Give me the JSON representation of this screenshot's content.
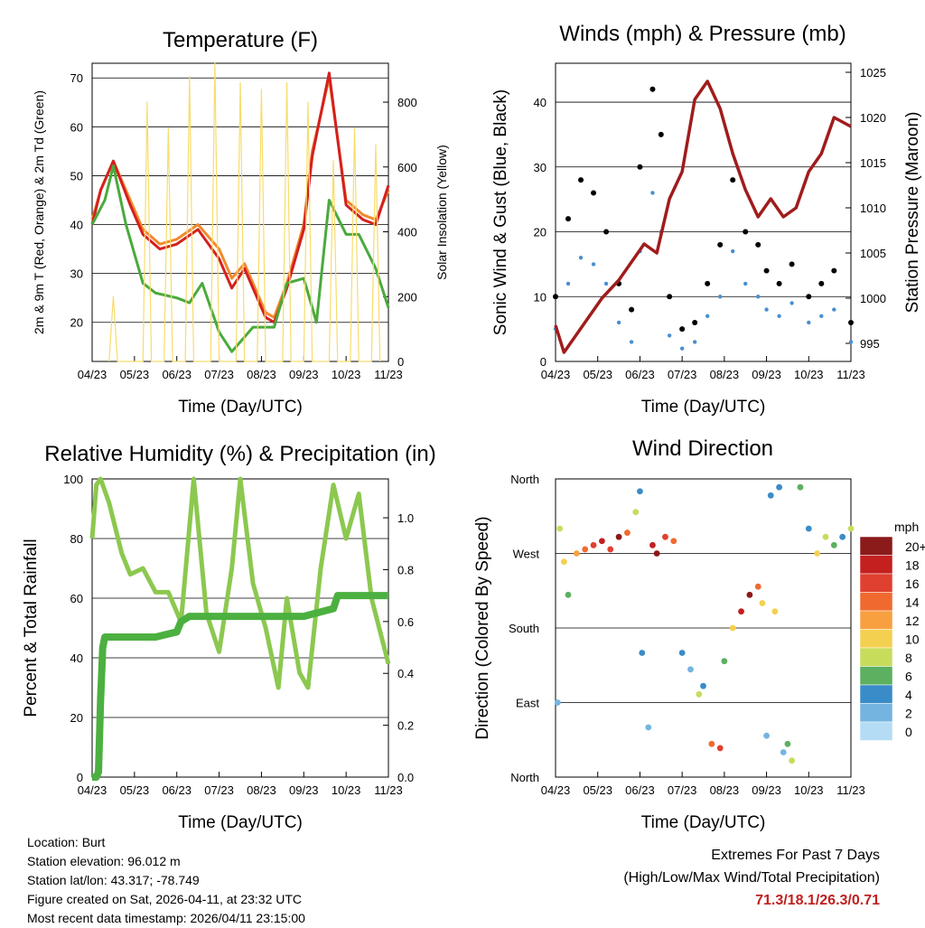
{
  "chart_data": [
    {
      "type": "line",
      "title": "Temperature (F)",
      "xlabel": "Time (Day/UTC)",
      "ylabel": "2m & 9m T (Red, Orange) & 2m Td (Green)",
      "y2label": "Solar Insolation (Yellow)",
      "x_ticks": [
        "04/23",
        "05/23",
        "06/23",
        "07/23",
        "08/23",
        "09/23",
        "10/23",
        "11/23"
      ],
      "ylim": [
        12,
        73
      ],
      "y_ticks": [
        20,
        30,
        40,
        50,
        60,
        70
      ],
      "y2lim": [
        0,
        920
      ],
      "y2_ticks": [
        0,
        200,
        400,
        600,
        800
      ],
      "series": [
        {
          "name": "9m T",
          "color": "#f08a2c",
          "x": [
            0,
            0.2,
            0.5,
            0.9,
            1.2,
            1.6,
            2.0,
            2.5,
            3.0,
            3.3,
            3.6,
            3.8,
            4.1,
            4.3,
            4.6,
            5.0,
            5.2,
            5.6,
            6.0,
            6.4,
            6.7,
            7.0
          ],
          "values": [
            41,
            47,
            53,
            45,
            39,
            36,
            37,
            40,
            35,
            29,
            32,
            28,
            22,
            21,
            28,
            40,
            55,
            70,
            45,
            42,
            41,
            47
          ]
        },
        {
          "name": "2m T",
          "color": "#d42020",
          "x": [
            0,
            0.2,
            0.5,
            0.9,
            1.2,
            1.6,
            2.0,
            2.5,
            3.0,
            3.3,
            3.6,
            3.8,
            4.1,
            4.3,
            4.6,
            5.0,
            5.2,
            5.6,
            6.0,
            6.4,
            6.7,
            7.0
          ],
          "values": [
            40,
            47,
            53,
            44,
            38,
            35,
            36,
            39,
            33,
            27,
            31,
            27,
            21,
            20,
            27,
            39,
            54,
            71,
            44,
            41,
            40,
            48
          ]
        },
        {
          "name": "2m Td",
          "color": "#4aaa3c",
          "x": [
            0,
            0.3,
            0.5,
            0.8,
            1.2,
            1.5,
            2.0,
            2.3,
            2.6,
            3.0,
            3.3,
            3.8,
            4.0,
            4.3,
            4.6,
            5.0,
            5.3,
            5.6,
            6.0,
            6.3,
            6.7,
            7.0
          ],
          "values": [
            40,
            45,
            52,
            40,
            28,
            26,
            25,
            24,
            28,
            18,
            14,
            19,
            19,
            19,
            28,
            29,
            20,
            45,
            38,
            38,
            31,
            23
          ]
        },
        {
          "name": "Solar Insolation",
          "color": "#f8dc6c",
          "axis": "y2",
          "x": [
            0.4,
            0.5,
            0.6,
            1.2,
            1.3,
            1.4,
            1.7,
            1.8,
            1.9,
            2.2,
            2.3,
            2.4,
            2.8,
            2.9,
            3.0,
            3.4,
            3.5,
            3.6,
            3.9,
            4.0,
            4.1,
            4.5,
            4.6,
            4.7,
            5.0,
            5.1,
            5.2,
            5.6,
            5.7,
            5.8,
            6.1,
            6.2,
            6.3,
            6.6,
            6.7,
            6.8
          ],
          "values": [
            0,
            200,
            0,
            0,
            800,
            0,
            0,
            720,
            0,
            0,
            880,
            0,
            0,
            920,
            0,
            0,
            860,
            0,
            0,
            840,
            0,
            0,
            860,
            0,
            0,
            800,
            0,
            0,
            620,
            0,
            0,
            720,
            0,
            0,
            670,
            0
          ]
        }
      ]
    },
    {
      "type": "scatter",
      "title": "Winds (mph) & Pressure (mb)",
      "xlabel": "Time (Day/UTC)",
      "ylabel": "Sonic Wind & Gust (Blue, Black)",
      "y2label": "Station Pressure (Maroon)",
      "x_ticks": [
        "04/23",
        "05/23",
        "06/23",
        "07/23",
        "08/23",
        "09/23",
        "10/23",
        "11/23"
      ],
      "ylim": [
        0,
        46
      ],
      "y_ticks": [
        0,
        10,
        20,
        30,
        40
      ],
      "y2lim": [
        993,
        1026
      ],
      "y2_ticks": [
        995,
        1000,
        1005,
        1010,
        1015,
        1020,
        1025
      ],
      "series": [
        {
          "name": "Gust",
          "color": "#000000",
          "x": [
            0,
            0.3,
            0.6,
            0.9,
            1.2,
            1.5,
            1.8,
            2.0,
            2.3,
            2.5,
            2.7,
            3.0,
            3.3,
            3.6,
            3.9,
            4.2,
            4.5,
            4.8,
            5.0,
            5.3,
            5.6,
            6.0,
            6.3,
            6.6,
            7.0
          ],
          "values": [
            10,
            22,
            28,
            26,
            20,
            12,
            8,
            30,
            42,
            35,
            10,
            5,
            6,
            12,
            18,
            28,
            20,
            18,
            14,
            12,
            15,
            10,
            12,
            14,
            6
          ]
        },
        {
          "name": "Wind",
          "color": "#4a8fcf",
          "x": [
            0,
            0.3,
            0.6,
            0.9,
            1.2,
            1.5,
            1.8,
            2.0,
            2.3,
            2.5,
            2.7,
            3.0,
            3.3,
            3.6,
            3.9,
            4.2,
            4.5,
            4.8,
            5.0,
            5.3,
            5.6,
            6.0,
            6.3,
            6.6,
            7.0
          ],
          "values": [
            5,
            12,
            16,
            15,
            12,
            6,
            3,
            17,
            26,
            20,
            4,
            2,
            3,
            7,
            10,
            17,
            12,
            10,
            8,
            7,
            9,
            6,
            7,
            8,
            3
          ]
        },
        {
          "name": "Station Pressure",
          "color": "#a01c1c",
          "axis": "y2",
          "x": [
            0,
            0.2,
            0.5,
            0.8,
            1.1,
            1.5,
            1.8,
            2.1,
            2.4,
            2.7,
            3.0,
            3.3,
            3.6,
            3.9,
            4.2,
            4.5,
            4.8,
            5.1,
            5.4,
            5.7,
            6.0,
            6.3,
            6.6,
            7.0
          ],
          "values": [
            997,
            994,
            996,
            998,
            1000,
            1002,
            1004,
            1006,
            1005,
            1011,
            1014,
            1022,
            1024,
            1021,
            1016,
            1012,
            1009,
            1011,
            1009,
            1010,
            1014,
            1016,
            1020,
            1019
          ]
        }
      ]
    },
    {
      "type": "line",
      "title": "Relative Humidity (%) & Precipitation (in)",
      "xlabel": "Time (Day/UTC)",
      "ylabel": "Percent & Total Rainfall",
      "x_ticks": [
        "04/23",
        "05/23",
        "06/23",
        "07/23",
        "08/23",
        "09/23",
        "10/23",
        "11/23"
      ],
      "ylim": [
        0,
        100
      ],
      "y_ticks": [
        0,
        20,
        40,
        60,
        80,
        100
      ],
      "y2lim": [
        0,
        1.15
      ],
      "y2_ticks": [
        0.0,
        0.2,
        0.4,
        0.6,
        0.8,
        1.0
      ],
      "series": [
        {
          "name": "Relative Humidity",
          "color": "#8cc850",
          "x": [
            0,
            0.1,
            0.2,
            0.4,
            0.7,
            0.9,
            1.2,
            1.5,
            1.8,
            2.1,
            2.4,
            2.7,
            3.0,
            3.3,
            3.5,
            3.8,
            4.1,
            4.4,
            4.6,
            4.9,
            5.1,
            5.4,
            5.7,
            6.0,
            6.3,
            6.6,
            7.0
          ],
          "values": [
            80,
            98,
            100,
            92,
            75,
            68,
            70,
            62,
            62,
            52,
            100,
            55,
            42,
            70,
            100,
            65,
            50,
            30,
            60,
            35,
            30,
            70,
            98,
            80,
            95,
            60,
            38
          ]
        },
        {
          "name": "Total Precipitation",
          "color": "#4cb040",
          "axis": "y2",
          "x": [
            0,
            0.1,
            0.15,
            0.2,
            0.25,
            0.3,
            0.5,
            1.0,
            1.5,
            2.0,
            2.1,
            2.3,
            2.5,
            3.0,
            4.0,
            5.0,
            5.7,
            5.8,
            6.0,
            6.5,
            7.0
          ],
          "values": [
            0.0,
            0.0,
            0.02,
            0.3,
            0.5,
            0.54,
            0.54,
            0.54,
            0.54,
            0.56,
            0.6,
            0.62,
            0.62,
            0.62,
            0.62,
            0.62,
            0.65,
            0.7,
            0.7,
            0.7,
            0.7
          ]
        }
      ]
    },
    {
      "type": "scatter",
      "title": "Wind Direction",
      "xlabel": "Time (Day/UTC)",
      "ylabel": "Direction (Colored By Speed)",
      "x_ticks": [
        "04/23",
        "05/23",
        "06/23",
        "07/23",
        "08/23",
        "09/23",
        "10/23",
        "11/23"
      ],
      "y_ticks": [
        "North",
        "East",
        "South",
        "West",
        "North"
      ],
      "ylim": [
        0,
        360
      ],
      "colorbar": {
        "title": "mph",
        "labels": [
          "20+",
          "18",
          "16",
          "14",
          "12",
          "10",
          "8",
          "6",
          "4",
          "2",
          "0"
        ],
        "colors": [
          "#8b1a1a",
          "#c42020",
          "#e04030",
          "#f06a30",
          "#f8a040",
          "#f4d050",
          "#c8dc5c",
          "#5cb060",
          "#3a8cc8",
          "#74b4e0",
          "#b4dcf4"
        ]
      },
      "x": [
        0.05,
        0.1,
        0.2,
        0.3,
        0.5,
        0.7,
        0.9,
        1.1,
        1.3,
        1.5,
        1.7,
        1.9,
        2.0,
        2.05,
        2.2,
        2.3,
        2.4,
        2.6,
        2.8,
        3.0,
        3.2,
        3.4,
        3.5,
        3.7,
        3.9,
        4.0,
        4.2,
        4.4,
        4.6,
        4.8,
        4.9,
        5.0,
        5.1,
        5.2,
        5.3,
        5.4,
        5.5,
        5.6,
        5.8,
        6.0,
        6.2,
        6.4,
        6.6,
        6.8,
        7.0
      ],
      "values": [
        90,
        300,
        260,
        220,
        270,
        275,
        280,
        285,
        275,
        290,
        295,
        320,
        345,
        150,
        60,
        280,
        270,
        290,
        285,
        150,
        130,
        100,
        110,
        40,
        35,
        140,
        180,
        200,
        220,
        230,
        210,
        50,
        340,
        200,
        350,
        30,
        40,
        20,
        350,
        300,
        270,
        290,
        280,
        290,
        300
      ],
      "speeds": [
        2,
        8,
        10,
        6,
        12,
        14,
        16,
        18,
        16,
        20,
        14,
        8,
        4,
        4,
        2,
        18,
        20,
        16,
        14,
        4,
        2,
        8,
        4,
        14,
        16,
        6,
        10,
        18,
        20,
        14,
        10,
        2,
        4,
        10,
        4,
        2,
        6,
        8,
        6,
        4,
        10,
        8,
        6,
        4,
        8
      ]
    }
  ],
  "footer": {
    "location": "Location: Burt",
    "elevation": "Station elevation: 96.012 m",
    "latlon": "Station lat/lon: 43.317; -78.749",
    "created": "Figure created on Sat, 2026-04-11, at 23:32 UTC",
    "recent": "Most recent data timestamp: 2026/04/11 23:15:00",
    "extremes_title": "Extremes For Past 7 Days",
    "extremes_sub": "(High/Low/Max Wind/Total Precipitation)",
    "extremes_values": "71.3/18.1/26.3/0.71"
  }
}
